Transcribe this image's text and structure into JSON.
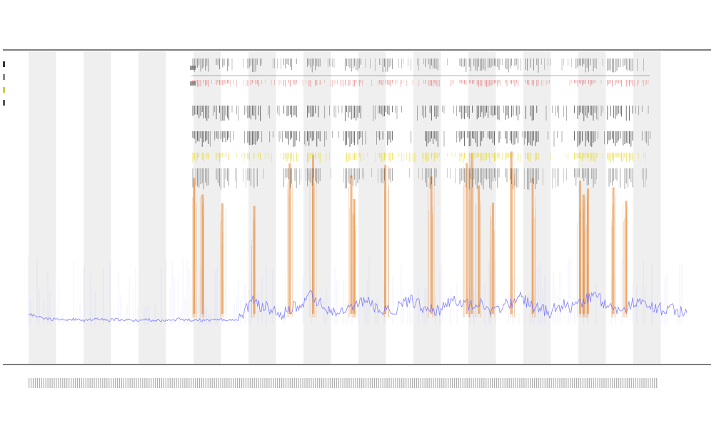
{
  "chart_data": {
    "type": "area",
    "title": "",
    "subtitle_lines": [
      "",
      ""
    ],
    "xlabel": "",
    "ylabel": "",
    "x_count": 92,
    "shaded_bands": [
      0,
      1,
      0,
      1,
      0,
      1,
      0,
      1,
      0,
      1,
      0,
      1,
      0,
      1,
      0,
      1,
      0,
      1,
      0,
      1,
      0,
      1,
      0,
      1
    ],
    "baseline_series": {
      "name": "",
      "color": "#6b6bff",
      "values": [
        0.1,
        0.08,
        0.06,
        0.05,
        0.05,
        0.04,
        0.05,
        0.04,
        0.04,
        0.05,
        0.05,
        0.04,
        0.05,
        0.04,
        0.04,
        0.04,
        0.05,
        0.04,
        0.04,
        0.04,
        0.04,
        0.05,
        0.04,
        0.05,
        0.04,
        0.04,
        0.05,
        0.04,
        0.05,
        0.05,
        0.14,
        0.22,
        0.18,
        0.16,
        0.12,
        0.1,
        0.13,
        0.18,
        0.2,
        0.26,
        0.22,
        0.16,
        0.12,
        0.11,
        0.13,
        0.16,
        0.22,
        0.2,
        0.15,
        0.13,
        0.12,
        0.16,
        0.2,
        0.22,
        0.18,
        0.16,
        0.14,
        0.14,
        0.2,
        0.24,
        0.2,
        0.17,
        0.22,
        0.19,
        0.14,
        0.12,
        0.18,
        0.22,
        0.26,
        0.2,
        0.16,
        0.14,
        0.12,
        0.15,
        0.18,
        0.16,
        0.2,
        0.24,
        0.28,
        0.24,
        0.18,
        0.14,
        0.16,
        0.18,
        0.22,
        0.2,
        0.17,
        0.15,
        0.14,
        0.16,
        0.12,
        0.08
      ]
    },
    "spike_series": {
      "name": "",
      "color": "#e8822a",
      "positions": [
        0.27,
        0.282,
        0.31,
        0.355,
        0.405,
        0.438,
        0.492,
        0.496,
        0.54,
        0.605,
        0.655,
        0.662,
        0.672,
        0.692,
        0.718,
        0.748,
        0.815,
        0.82,
        0.826,
        0.862,
        0.88
      ]
    },
    "event_rows": {
      "colors": {
        "black": "#222222",
        "red": "#e05050",
        "yellow": "#e6d200"
      }
    },
    "legend": {
      "placement": "top-left",
      "entries": [
        {
          "label": "",
          "color": "#333333"
        },
        {
          "label": "",
          "color": "#888888"
        },
        {
          "label": "",
          "color": "#cccc44"
        },
        {
          "label": "",
          "color": "#555555"
        }
      ]
    },
    "grid": false
  }
}
